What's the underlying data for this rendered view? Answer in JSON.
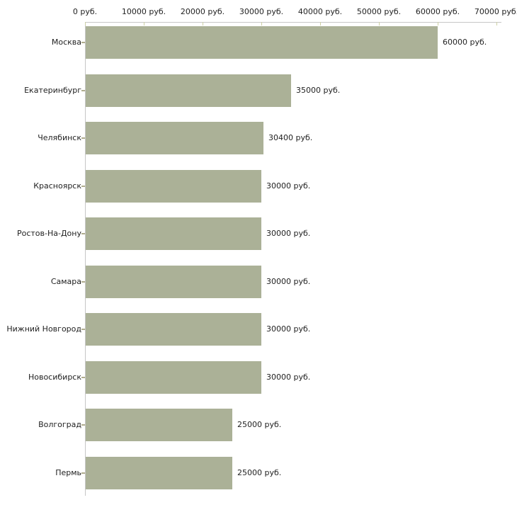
{
  "chart_data": {
    "type": "bar",
    "orientation": "horizontal",
    "categories": [
      "Москва",
      "Екатеринбург",
      "Челябинск",
      "Красноярск",
      "Ростов-На-Дону",
      "Самара",
      "Нижний Новгород",
      "Новосибирск",
      "Волгоград",
      "Пермь"
    ],
    "values": [
      60000,
      35000,
      30400,
      30000,
      30000,
      30000,
      30000,
      30000,
      25000,
      25000
    ],
    "value_labels": [
      "60000 руб.",
      "35000 руб.",
      "30400 руб.",
      "30000 руб.",
      "30000 руб.",
      "30000 руб.",
      "30000 руб.",
      "30000 руб.",
      "25000 руб.",
      "25000 руб."
    ],
    "x_axis": {
      "position": "top",
      "min": 0,
      "max": 70000,
      "tick_step": 10000,
      "tick_values": [
        0,
        10000,
        20000,
        30000,
        40000,
        50000,
        60000,
        70000
      ],
      "tick_labels": [
        "0 руб.",
        "10000 руб.",
        "20000 руб.",
        "30000 руб.",
        "40000 руб.",
        "50000 руб.",
        "60000 руб.",
        "70000 руб."
      ]
    },
    "grid": false,
    "legend": null,
    "colors": {
      "bar": "#abb197",
      "axis_line": "#c6c6c6",
      "axis_tick": "#cdd0a5",
      "category_tick": "#b0ad8e",
      "text": "#222222",
      "background": "#ffffff"
    }
  }
}
